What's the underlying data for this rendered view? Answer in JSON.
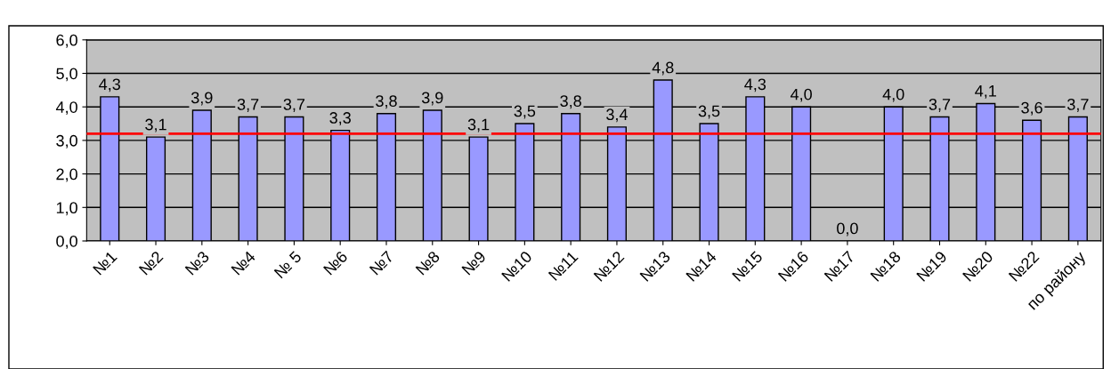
{
  "chart_data": {
    "type": "bar",
    "categories": [
      "№1",
      "№2",
      "№3",
      "№4",
      "№ 5",
      "№6",
      "№7",
      "№8",
      "№9",
      "№10",
      "№11",
      "№12",
      "№13",
      "№14",
      "№15",
      "№16",
      "№17",
      "№18",
      "№19",
      "№20",
      "№22",
      "по району"
    ],
    "values": [
      4.3,
      3.1,
      3.9,
      3.7,
      3.7,
      3.3,
      3.8,
      3.9,
      3.1,
      3.5,
      3.8,
      3.4,
      4.8,
      3.5,
      4.3,
      4.0,
      0.0,
      4.0,
      3.7,
      4.1,
      3.6,
      3.7
    ],
    "value_labels": [
      "4,3",
      "3,1",
      "3,9",
      "3,7",
      "3,7",
      "3,3",
      "3,8",
      "3,9",
      "3,1",
      "3,5",
      "3,8",
      "3,4",
      "4,8",
      "3,5",
      "4,3",
      "4,0",
      "0,0",
      "4,0",
      "3,7",
      "4,1",
      "3,6",
      "3,7"
    ],
    "color": "#9999ff",
    "ylim": [
      0,
      6
    ],
    "yticks": [
      {
        "value": 0,
        "label": "0,0"
      },
      {
        "value": 1,
        "label": "1,0"
      },
      {
        "value": 2,
        "label": "2,0"
      },
      {
        "value": 3,
        "label": "3,0"
      },
      {
        "value": 4,
        "label": "4,0"
      },
      {
        "value": 5,
        "label": "5,0"
      },
      {
        "value": 6,
        "label": "6,0"
      }
    ],
    "grid": "y",
    "ref_lines": [
      {
        "axis": "y",
        "value": 3.2,
        "color": "#ff0000",
        "line_style": "solid"
      }
    ]
  }
}
